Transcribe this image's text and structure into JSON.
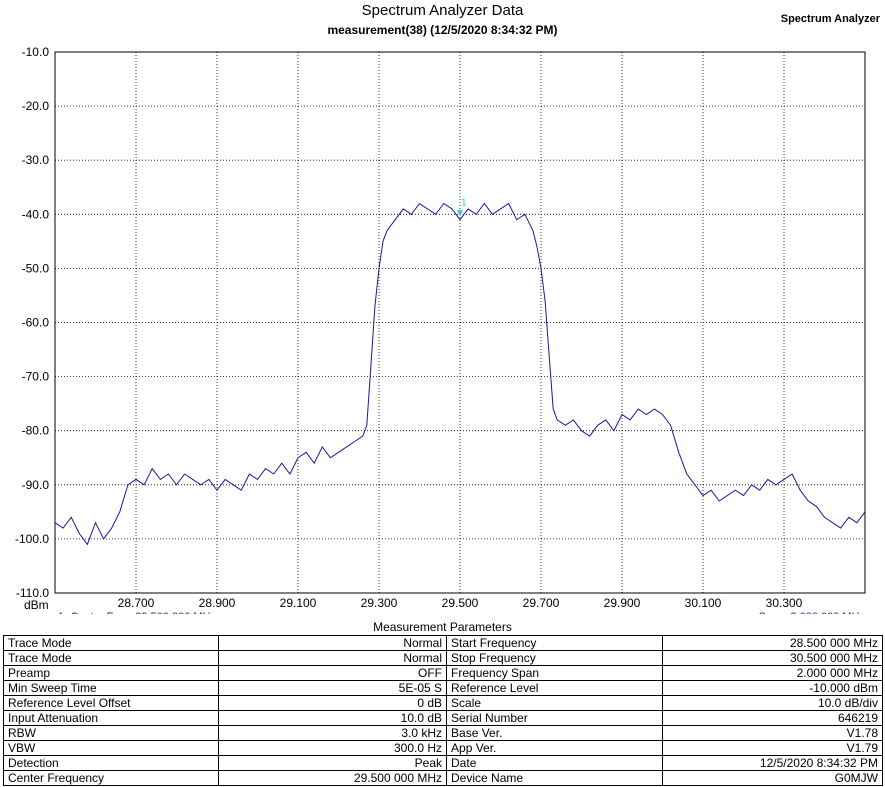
{
  "header": {
    "title": "Spectrum Analyzer Data",
    "subtitle": "measurement(38) (12/5/2020 8:34:32 PM)",
    "brand": "Spectrum Analyzer"
  },
  "chart_data": {
    "type": "line",
    "xlabel": "",
    "ylabel": "dBm",
    "xlim": [
      28.5,
      30.5
    ],
    "ylim": [
      -110,
      -10
    ],
    "grid": true,
    "x_ticks": [
      "28.700",
      "28.900",
      "29.100",
      "29.300",
      "29.500",
      "29.700",
      "29.900",
      "30.100",
      "30.300"
    ],
    "y_ticks": [
      "-10.0",
      "-20.0",
      "-30.0",
      "-40.0",
      "-50.0",
      "-60.0",
      "-70.0",
      "-80.0",
      "-90.0",
      "-100.0",
      "-110.0"
    ],
    "footer_left": "A: Center Freq: 29.500 000 MHz",
    "footer_right": "Span: 2.000 000 MHz",
    "marker": {
      "label": "1",
      "x": 29.5,
      "y": -40.0
    },
    "colors": {
      "trace": "#1a1a9c",
      "marker": "#2ec8c8",
      "grid": "#000000"
    },
    "series": [
      {
        "x": [
          28.5,
          28.52,
          28.54,
          28.56,
          28.58,
          28.6,
          28.62,
          28.64,
          28.66,
          28.68,
          28.7,
          28.72,
          28.74,
          28.76,
          28.78,
          28.8,
          28.82,
          28.84,
          28.86,
          28.88,
          28.9,
          28.92,
          28.94,
          28.96,
          28.98,
          29.0,
          29.02,
          29.04,
          29.06,
          29.08,
          29.1,
          29.12,
          29.14,
          29.16,
          29.18,
          29.2,
          29.22,
          29.24,
          29.26,
          29.27,
          29.28,
          29.29,
          29.3,
          29.31,
          29.32,
          29.34,
          29.36,
          29.38,
          29.4,
          29.42,
          29.44,
          29.46,
          29.48,
          29.5,
          29.52,
          29.54,
          29.56,
          29.58,
          29.6,
          29.62,
          29.64,
          29.66,
          29.68,
          29.69,
          29.7,
          29.71,
          29.72,
          29.73,
          29.74,
          29.76,
          29.78,
          29.8,
          29.82,
          29.84,
          29.86,
          29.88,
          29.9,
          29.92,
          29.94,
          29.96,
          29.98,
          30.0,
          30.02,
          30.04,
          30.06,
          30.08,
          30.1,
          30.12,
          30.14,
          30.16,
          30.18,
          30.2,
          30.22,
          30.24,
          30.26,
          30.28,
          30.3,
          30.32,
          30.34,
          30.36,
          30.38,
          30.4,
          30.42,
          30.44,
          30.46,
          30.48,
          30.5
        ],
        "y": [
          -97,
          -98,
          -96,
          -99,
          -101,
          -97,
          -100,
          -98,
          -95,
          -90,
          -89,
          -90,
          -87,
          -89,
          -88,
          -90,
          -88,
          -89,
          -90,
          -89,
          -91,
          -89,
          -90,
          -91,
          -88,
          -89,
          -87,
          -88,
          -86,
          -88,
          -85,
          -84,
          -86,
          -83,
          -85,
          -84,
          -83,
          -82,
          -81,
          -79,
          -68,
          -57,
          -50,
          -45,
          -43,
          -41,
          -39,
          -40,
          -38,
          -39,
          -40,
          -38,
          -39,
          -41,
          -39,
          -40,
          -38,
          -40,
          -39,
          -38,
          -41,
          -40,
          -43,
          -46,
          -50,
          -56,
          -66,
          -76,
          -78,
          -79,
          -78,
          -80,
          -81,
          -79,
          -78,
          -80,
          -77,
          -78,
          -76,
          -77,
          -76,
          -77,
          -79,
          -84,
          -88,
          -90,
          -92,
          -91,
          -93,
          -92,
          -91,
          -92,
          -90,
          -91,
          -89,
          -90,
          -89,
          -88,
          -91,
          -93,
          -94,
          -96,
          -97,
          -98,
          -96,
          -97,
          -95
        ]
      }
    ]
  },
  "params": {
    "title": "Measurement Parameters",
    "rows": [
      {
        "k1": "Trace Mode",
        "v1": "Normal",
        "k2": "Start Frequency",
        "v2": "28.500 000 MHz"
      },
      {
        "k1": "Trace Mode",
        "v1": "Normal",
        "k2": "Stop Frequency",
        "v2": "30.500 000 MHz"
      },
      {
        "k1": "Preamp",
        "v1": "OFF",
        "k2": "Frequency Span",
        "v2": "2.000 000 MHz"
      },
      {
        "k1": "Min Sweep Time",
        "v1": "5E-05 S",
        "k2": "Reference Level",
        "v2": "-10.000  dBm"
      },
      {
        "k1": "Reference Level Offset",
        "v1": "0 dB",
        "k2": "Scale",
        "v2": "10.0  dB/div"
      },
      {
        "k1": "Input Attenuation",
        "v1": "10.0 dB",
        "k2": "Serial Number",
        "v2": "646219"
      },
      {
        "k1": "RBW",
        "v1": "3.0 kHz",
        "k2": "Base Ver.",
        "v2": "V1.78"
      },
      {
        "k1": "VBW",
        "v1": "300.0 Hz",
        "k2": "App Ver.",
        "v2": "V1.79"
      },
      {
        "k1": "Detection",
        "v1": "Peak",
        "k2": "Date",
        "v2": "12/5/2020 8:34:32 PM"
      },
      {
        "k1": "Center Frequency",
        "v1": "29.500 000 MHz",
        "k2": "Device Name",
        "v2": "G0MJW"
      }
    ]
  }
}
